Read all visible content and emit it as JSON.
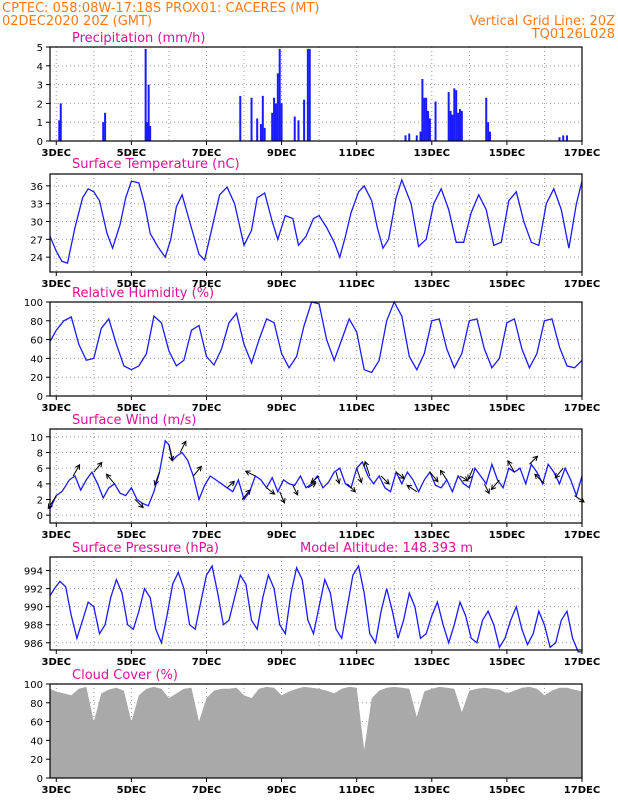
{
  "header": {
    "line1_left": "CPTEC:  058:08W-17:18S  PROX01: CACERES (MT)",
    "line2_left": "02DEC2020 20Z (GMT)",
    "line2_right": "Vertical Grid Line: 20Z",
    "line3_right": "TQ0126L028"
  },
  "colors": {
    "header": "#ff7a1a",
    "title": "#e0109a",
    "series": "#1a1aff",
    "cloud": "#a9a9a9"
  },
  "chart_data": [
    {
      "id": "precip",
      "type": "bar",
      "title": "Precipitation (mm/h)",
      "ylim": [
        0,
        5
      ],
      "yticks": [
        0,
        1,
        2,
        3,
        4,
        5
      ],
      "xlim": [
        2.833,
        17.0
      ],
      "xticks": [
        "3DEC",
        "5DEC",
        "7DEC",
        "9DEC",
        "11DEC",
        "13DEC",
        "15DEC",
        "17DEC"
      ],
      "x": [
        3.08,
        3.12,
        4.25,
        4.3,
        5.38,
        5.42,
        5.46,
        5.5,
        7.9,
        8.2,
        8.35,
        8.45,
        8.5,
        8.55,
        8.75,
        8.8,
        8.85,
        8.9,
        8.95,
        9.0,
        9.35,
        9.45,
        9.6,
        9.7,
        9.75,
        12.3,
        12.4,
        12.6,
        12.7,
        12.75,
        12.8,
        12.85,
        12.9,
        12.95,
        13.1,
        13.45,
        13.5,
        13.55,
        13.6,
        13.65,
        13.7,
        13.75,
        13.8,
        14.45,
        14.5,
        14.55,
        16.4,
        16.5,
        16.6
      ],
      "values": [
        1.1,
        2.0,
        1.0,
        1.5,
        4.9,
        1.0,
        3.0,
        0.8,
        2.4,
        2.3,
        1.2,
        0.9,
        2.4,
        0.7,
        1.5,
        2.3,
        2.0,
        3.6,
        4.9,
        2.0,
        1.3,
        1.1,
        2.2,
        4.9,
        4.9,
        0.3,
        0.4,
        0.3,
        0.5,
        3.3,
        2.3,
        2.3,
        1.6,
        1.2,
        2.1,
        2.6,
        1.6,
        1.4,
        2.8,
        2.7,
        1.5,
        1.7,
        1.6,
        2.3,
        1.0,
        0.5,
        0.2,
        0.3,
        0.3
      ]
    },
    {
      "id": "temp",
      "type": "line",
      "title": "Surface Temperature (nC)",
      "ylim": [
        21.5,
        38
      ],
      "yticks": [
        24,
        27,
        30,
        33,
        36
      ],
      "xlim": [
        2.833,
        17.0
      ],
      "xticks": [
        "3DEC",
        "5DEC",
        "7DEC",
        "9DEC",
        "11DEC",
        "13DEC",
        "15DEC",
        "17DEC"
      ],
      "x": [
        2.833,
        3.0,
        3.15,
        3.3,
        3.5,
        3.7,
        3.85,
        4.0,
        4.15,
        4.35,
        4.5,
        4.7,
        4.85,
        5.0,
        5.2,
        5.35,
        5.5,
        5.7,
        5.9,
        6.05,
        6.2,
        6.35,
        6.55,
        6.8,
        6.95,
        7.15,
        7.35,
        7.55,
        7.75,
        8.0,
        8.2,
        8.35,
        8.55,
        8.75,
        8.9,
        9.1,
        9.3,
        9.45,
        9.65,
        9.85,
        10.0,
        10.2,
        10.4,
        10.55,
        10.7,
        10.85,
        11.05,
        11.2,
        11.4,
        11.55,
        11.7,
        11.85,
        12.05,
        12.2,
        12.45,
        12.65,
        12.85,
        13.05,
        13.25,
        13.45,
        13.65,
        13.85,
        14.05,
        14.25,
        14.45,
        14.65,
        14.85,
        15.05,
        15.25,
        15.45,
        15.65,
        15.85,
        16.05,
        16.25,
        16.45,
        16.65,
        16.85,
        17.0
      ],
      "y": [
        27.5,
        25.0,
        23.3,
        23.0,
        29.0,
        34.0,
        35.5,
        35.0,
        33.5,
        28.0,
        25.5,
        29.5,
        34.0,
        36.8,
        36.5,
        33.0,
        28.0,
        25.8,
        24.0,
        27.0,
        32.5,
        34.5,
        30.0,
        24.5,
        23.5,
        29.0,
        34.5,
        35.8,
        33.0,
        26.0,
        28.5,
        34.0,
        34.8,
        30.0,
        27.0,
        31.0,
        30.5,
        26.0,
        27.5,
        30.5,
        31.0,
        29.0,
        26.5,
        24.0,
        27.5,
        31.5,
        35.0,
        36.0,
        33.5,
        29.0,
        25.5,
        27.0,
        34.0,
        37.0,
        33.0,
        25.8,
        27.0,
        33.0,
        35.5,
        32.0,
        26.5,
        26.5,
        31.5,
        34.5,
        32.0,
        26.0,
        26.5,
        33.5,
        35.0,
        30.0,
        26.5,
        26.0,
        33.0,
        35.5,
        32.0,
        25.5,
        33.0,
        36.8
      ]
    },
    {
      "id": "rh",
      "type": "line",
      "title": "Relative Humidity (%)",
      "ylim": [
        0,
        100
      ],
      "yticks": [
        0,
        20,
        40,
        60,
        80,
        100
      ],
      "xlim": [
        2.833,
        17.0
      ],
      "xticks": [
        "3DEC",
        "5DEC",
        "7DEC",
        "9DEC",
        "11DEC",
        "13DEC",
        "15DEC",
        "17DEC"
      ],
      "x": [
        2.833,
        3.0,
        3.2,
        3.4,
        3.6,
        3.8,
        4.0,
        4.2,
        4.4,
        4.6,
        4.8,
        5.0,
        5.2,
        5.4,
        5.6,
        5.8,
        6.0,
        6.2,
        6.4,
        6.6,
        6.8,
        7.0,
        7.2,
        7.4,
        7.6,
        7.8,
        8.0,
        8.2,
        8.4,
        8.6,
        8.8,
        9.0,
        9.2,
        9.4,
        9.6,
        9.8,
        10.0,
        10.2,
        10.4,
        10.6,
        10.8,
        11.0,
        11.2,
        11.4,
        11.6,
        11.8,
        12.0,
        12.2,
        12.4,
        12.6,
        12.8,
        13.0,
        13.2,
        13.4,
        13.6,
        13.8,
        14.0,
        14.2,
        14.4,
        14.6,
        14.8,
        15.0,
        15.2,
        15.4,
        15.6,
        15.8,
        16.0,
        16.2,
        16.4,
        16.6,
        16.8,
        17.0
      ],
      "y": [
        58,
        70,
        80,
        84,
        55,
        38,
        40,
        72,
        82,
        55,
        32,
        28,
        32,
        45,
        85,
        78,
        48,
        32,
        38,
        70,
        75,
        42,
        33,
        50,
        78,
        88,
        55,
        35,
        60,
        82,
        78,
        45,
        30,
        42,
        75,
        100,
        98,
        60,
        38,
        60,
        82,
        68,
        28,
        25,
        38,
        80,
        100,
        85,
        42,
        28,
        45,
        80,
        82,
        50,
        30,
        45,
        80,
        82,
        50,
        30,
        40,
        78,
        82,
        50,
        30,
        45,
        80,
        82,
        52,
        32,
        30,
        38
      ]
    },
    {
      "id": "wind",
      "type": "line",
      "title": "Surface Wind (m/s)",
      "ylim": [
        -1,
        11
      ],
      "yticks": [
        0,
        2,
        4,
        6,
        8,
        10
      ],
      "xlim": [
        2.833,
        17.0
      ],
      "xticks": [
        "3DEC",
        "5DEC",
        "7DEC",
        "9DEC",
        "11DEC",
        "13DEC",
        "15DEC",
        "17DEC"
      ],
      "x": [
        2.833,
        3.0,
        3.15,
        3.35,
        3.5,
        3.65,
        3.8,
        3.95,
        4.1,
        4.25,
        4.4,
        4.55,
        4.7,
        4.85,
        5.0,
        5.15,
        5.3,
        5.45,
        5.6,
        5.75,
        5.9,
        6.0,
        6.1,
        6.2,
        6.35,
        6.5,
        6.65,
        6.8,
        6.95,
        7.1,
        7.25,
        7.4,
        7.55,
        7.7,
        7.85,
        8.0,
        8.15,
        8.3,
        8.45,
        8.6,
        8.75,
        8.9,
        9.05,
        9.2,
        9.35,
        9.5,
        9.65,
        9.8,
        9.95,
        10.1,
        10.25,
        10.4,
        10.55,
        10.7,
        10.85,
        11.0,
        11.15,
        11.3,
        11.45,
        11.6,
        11.75,
        11.9,
        12.05,
        12.2,
        12.35,
        12.5,
        12.65,
        12.8,
        12.95,
        13.1,
        13.25,
        13.4,
        13.55,
        13.7,
        13.85,
        14.0,
        14.15,
        14.3,
        14.45,
        14.6,
        14.75,
        14.9,
        15.05,
        15.2,
        15.35,
        15.5,
        15.65,
        15.8,
        15.95,
        16.1,
        16.25,
        16.4,
        16.55,
        16.7,
        16.85,
        17.0
      ],
      "y": [
        0.8,
        2.5,
        3.0,
        4.5,
        5.0,
        3.2,
        4.5,
        5.5,
        4.0,
        2.2,
        3.5,
        4.0,
        2.8,
        2.5,
        3.5,
        2.0,
        1.5,
        1.2,
        3.0,
        5.5,
        9.5,
        9.0,
        7.0,
        7.5,
        8.0,
        7.0,
        5.0,
        2.0,
        3.8,
        5.0,
        4.5,
        4.0,
        3.5,
        3.0,
        4.5,
        2.0,
        3.0,
        5.0,
        4.5,
        3.5,
        4.8,
        3.0,
        4.5,
        4.0,
        3.8,
        5.0,
        3.5,
        4.0,
        5.0,
        3.5,
        4.2,
        5.5,
        6.0,
        4.0,
        3.5,
        6.0,
        6.8,
        5.0,
        4.0,
        5.0,
        3.5,
        3.0,
        5.5,
        4.0,
        5.5,
        4.5,
        3.0,
        4.5,
        5.5,
        3.8,
        3.5,
        4.5,
        3.0,
        5.0,
        4.0,
        3.5,
        6.0,
        5.0,
        4.0,
        6.5,
        4.5,
        3.5,
        6.0,
        5.5,
        6.0,
        4.0,
        6.5,
        5.5,
        4.0,
        6.5,
        5.5,
        4.0,
        6.0,
        4.5,
        2.5,
        5.0
      ],
      "arrows": {
        "x": [
          3.0,
          3.45,
          4.0,
          4.55,
          5.1,
          5.75,
          6.0,
          6.3,
          6.65,
          7.55,
          7.95,
          8.3,
          8.6,
          8.95,
          9.3,
          9.7,
          10.0,
          10.45,
          10.75,
          11.0,
          11.35,
          11.65,
          12.05,
          12.6,
          12.95,
          13.4,
          13.75,
          14.1,
          14.4,
          14.8,
          15.2,
          15.6,
          16.0,
          16.5,
          16.8
        ],
        "u": [
          -0.5,
          0.4,
          0.5,
          -0.5,
          0.5,
          -0.3,
          0.2,
          0.35,
          0.5,
          0.45,
          0.5,
          -0.6,
          0.5,
          0.3,
          0.3,
          0.5,
          -0.5,
          0.2,
          0.5,
          0.3,
          -0.3,
          0.5,
          0.5,
          -0.6,
          0.5,
          -0.4,
          0.5,
          -0.3,
          0.3,
          -0.5,
          -0.4,
          0.5,
          -0.6,
          -0.5,
          0.6
        ],
        "v": [
          -0.8,
          0.7,
          0.6,
          0.6,
          -0.5,
          -0.8,
          -1.0,
          0.7,
          0.6,
          0.4,
          0.6,
          0.3,
          -0.4,
          -0.7,
          -0.6,
          0.3,
          -0.4,
          -0.7,
          -0.5,
          -0.9,
          0.9,
          -0.5,
          -0.4,
          0.4,
          -0.6,
          0.6,
          -0.3,
          -0.7,
          -0.6,
          -0.6,
          0.7,
          0.5,
          0.6,
          -0.6,
          -0.4
        ]
      }
    },
    {
      "id": "press",
      "type": "line",
      "title": "Surface Pressure (hPa)",
      "subtitle": "Model Altitude: 148.393 m",
      "ylim": [
        985.2,
        995.5
      ],
      "yticks": [
        986,
        988,
        990,
        992,
        994
      ],
      "xlim": [
        2.833,
        17.0
      ],
      "xticks": [
        "3DEC",
        "5DEC",
        "7DEC",
        "9DEC",
        "11DEC",
        "13DEC",
        "15DEC",
        "17DEC"
      ],
      "x": [
        2.833,
        2.95,
        3.1,
        3.25,
        3.4,
        3.55,
        3.7,
        3.85,
        4.0,
        4.15,
        4.3,
        4.45,
        4.6,
        4.75,
        4.9,
        5.05,
        5.2,
        5.35,
        5.5,
        5.65,
        5.8,
        5.95,
        6.1,
        6.25,
        6.4,
        6.55,
        6.7,
        6.85,
        7.0,
        7.15,
        7.3,
        7.45,
        7.6,
        7.75,
        7.9,
        8.05,
        8.2,
        8.35,
        8.5,
        8.65,
        8.8,
        8.95,
        9.1,
        9.25,
        9.4,
        9.55,
        9.7,
        9.85,
        10.0,
        10.15,
        10.3,
        10.45,
        10.6,
        10.75,
        10.9,
        11.05,
        11.2,
        11.35,
        11.5,
        11.65,
        11.8,
        11.95,
        12.1,
        12.25,
        12.4,
        12.55,
        12.7,
        12.85,
        13.0,
        13.15,
        13.3,
        13.45,
        13.6,
        13.75,
        13.9,
        14.05,
        14.2,
        14.35,
        14.5,
        14.65,
        14.8,
        14.95,
        15.1,
        15.25,
        15.4,
        15.55,
        15.7,
        15.85,
        16.0,
        16.15,
        16.3,
        16.45,
        16.6,
        16.75,
        16.9,
        17.0
      ],
      "y": [
        991.2,
        992.0,
        992.8,
        992.2,
        989.0,
        986.5,
        988.5,
        990.5,
        990.0,
        987.0,
        988.0,
        991.0,
        993.0,
        991.5,
        988.0,
        987.5,
        989.5,
        992.0,
        991.0,
        987.5,
        986.0,
        989.0,
        992.5,
        993.8,
        992.0,
        988.0,
        987.5,
        990.5,
        993.5,
        994.5,
        991.5,
        988.0,
        988.5,
        991.0,
        993.5,
        992.5,
        988.5,
        987.5,
        991.0,
        993.5,
        992.0,
        988.0,
        987.0,
        991.5,
        994.3,
        993.0,
        988.5,
        987.0,
        990.0,
        993.0,
        991.5,
        987.5,
        986.5,
        990.0,
        993.5,
        994.5,
        991.5,
        987.0,
        986.0,
        989.5,
        992.0,
        989.5,
        986.5,
        988.5,
        991.5,
        990.0,
        986.5,
        987.0,
        989.0,
        990.5,
        988.0,
        986.0,
        988.0,
        990.5,
        989.0,
        986.5,
        986.0,
        988.5,
        989.5,
        988.0,
        985.5,
        986.5,
        988.5,
        990.0,
        987.5,
        985.8,
        987.0,
        989.5,
        988.0,
        985.5,
        986.0,
        988.5,
        989.5,
        986.5,
        985.0,
        985.0
      ]
    },
    {
      "id": "cloud",
      "type": "area",
      "title": "Cloud Cover (%)",
      "ylim": [
        0,
        100
      ],
      "yticks": [
        0,
        20,
        40,
        60,
        80,
        100
      ],
      "xlim": [
        2.833,
        17.0
      ],
      "xticks": [
        "3DEC",
        "5DEC",
        "7DEC",
        "9DEC",
        "11DEC",
        "13DEC",
        "15DEC",
        "17DEC"
      ],
      "x": [
        2.833,
        3.0,
        3.2,
        3.4,
        3.6,
        3.8,
        4.0,
        4.2,
        4.4,
        4.6,
        4.8,
        5.0,
        5.2,
        5.4,
        5.6,
        5.8,
        6.0,
        6.2,
        6.4,
        6.6,
        6.8,
        7.0,
        7.2,
        7.4,
        7.6,
        7.8,
        8.0,
        8.2,
        8.4,
        8.6,
        8.8,
        9.0,
        9.2,
        9.4,
        9.6,
        9.8,
        10.0,
        10.2,
        10.4,
        10.6,
        10.8,
        11.0,
        11.2,
        11.4,
        11.6,
        11.8,
        12.0,
        12.2,
        12.4,
        12.6,
        12.8,
        13.0,
        13.2,
        13.4,
        13.6,
        13.8,
        14.0,
        14.2,
        14.4,
        14.6,
        14.8,
        15.0,
        15.2,
        15.4,
        15.6,
        15.8,
        16.0,
        16.2,
        16.4,
        16.6,
        16.8,
        17.0
      ],
      "values": [
        95,
        92,
        90,
        88,
        95,
        97,
        60,
        90,
        94,
        96,
        93,
        60,
        88,
        95,
        97,
        95,
        85,
        90,
        95,
        96,
        60,
        85,
        93,
        95,
        95,
        96,
        88,
        85,
        95,
        97,
        96,
        88,
        92,
        95,
        97,
        96,
        95,
        93,
        90,
        95,
        97,
        96,
        30,
        85,
        93,
        96,
        97,
        96,
        95,
        65,
        92,
        95,
        97,
        96,
        95,
        70,
        93,
        95,
        96,
        95,
        94,
        90,
        93,
        96,
        97,
        95,
        88,
        93,
        96,
        96,
        94,
        92
      ]
    }
  ]
}
